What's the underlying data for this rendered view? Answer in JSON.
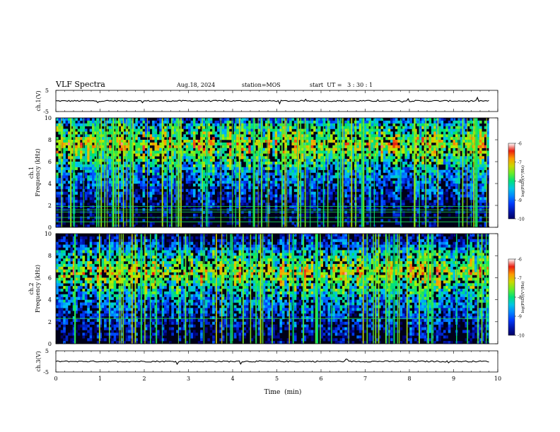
{
  "header": {
    "title": "VLF Spectra",
    "date": "Aug.18, 2024",
    "station": "station=MOS",
    "start_ut": "start  UT =   3 : 30 : 1"
  },
  "chart_data": [
    {
      "type": "line",
      "ylabel": "ch.1(V)",
      "ylim": [
        -5,
        5
      ],
      "yticks": [
        "5",
        "-5"
      ],
      "xlim": [
        0,
        10
      ],
      "series": [
        {
          "values": [
            0,
            0,
            0,
            0,
            0,
            0,
            0,
            0,
            0,
            0
          ]
        }
      ],
      "trace_end_min": 9.8
    },
    {
      "type": "heatmap",
      "ylabel": "ch.1\nFrequency  (kHz)",
      "ylim": [
        0,
        10
      ],
      "yticks": [
        "0",
        "2",
        "4",
        "6",
        "8",
        "10"
      ],
      "xlim": [
        0,
        10
      ],
      "data_end_min": 9.8,
      "colorbar": {
        "label": "log(PSD)(V²/Hz)",
        "ticks": [
          "-6",
          "-7",
          "-8",
          "-9",
          "-10"
        ],
        "range": [
          -10,
          -6
        ]
      },
      "band_khz": [
        5.5,
        9.5
      ],
      "horizontal_lines_khz": [
        0.5,
        0.9,
        1.4,
        1.6,
        1.9
      ],
      "spike_density": 0.55
    },
    {
      "type": "heatmap",
      "ylabel": "ch.2\nFrequency  (kHz)",
      "ylim": [
        0,
        10
      ],
      "yticks": [
        "0",
        "2",
        "4",
        "6",
        "8",
        "10"
      ],
      "xlim": [
        0,
        10
      ],
      "data_end_min": 9.8,
      "colorbar": {
        "label": "log(PSD)(V²/Hz)",
        "ticks": [
          "-6",
          "-7",
          "-8",
          "-9",
          "-10"
        ],
        "range": [
          -10,
          -6
        ]
      },
      "band_khz": [
        4.5,
        8.5
      ],
      "horizontal_lines_khz": [
        2.3
      ],
      "spike_density": 0.45
    },
    {
      "type": "line",
      "ylabel": "ch.3(V)",
      "ylim": [
        -5,
        5
      ],
      "yticks": [
        "5",
        "-5"
      ],
      "xlim": [
        0,
        10
      ],
      "series": [
        {
          "values": [
            0,
            0,
            0,
            0,
            0,
            0,
            0,
            0,
            0,
            0
          ]
        }
      ],
      "trace_end_min": 9.8
    }
  ],
  "xaxis": {
    "label": "Time  (min)",
    "ticks": [
      "0",
      "1",
      "2",
      "3",
      "4",
      "5",
      "6",
      "7",
      "8",
      "9",
      "10"
    ]
  }
}
